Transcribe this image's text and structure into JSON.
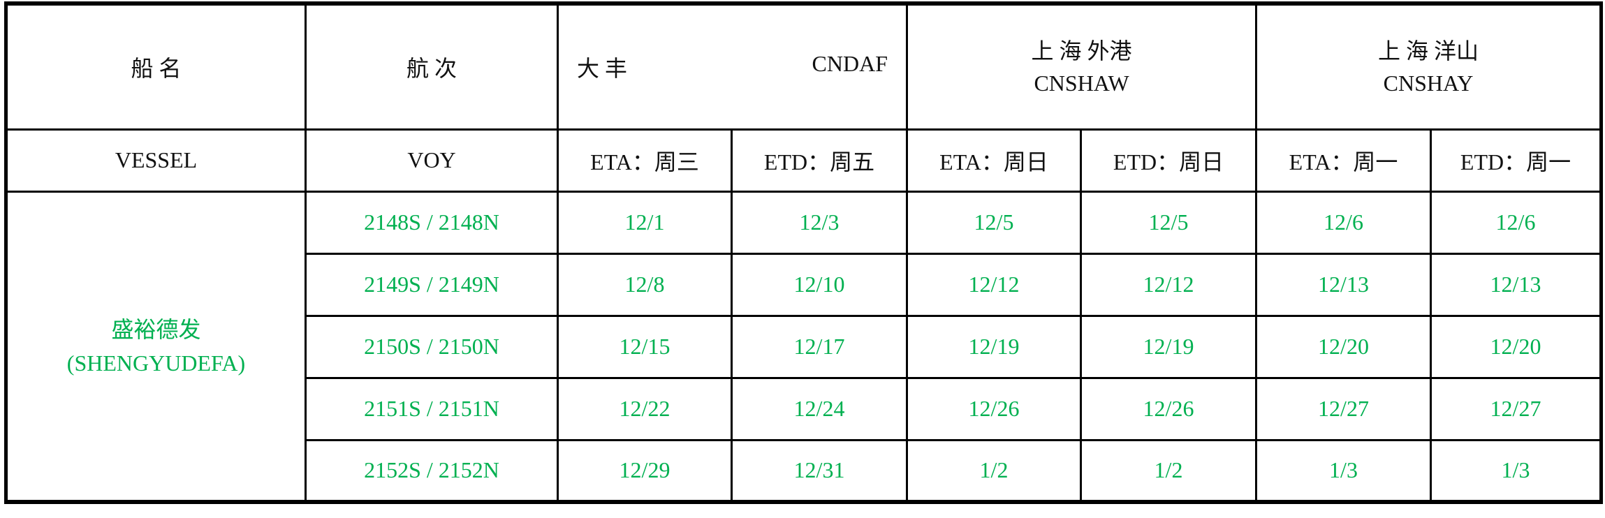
{
  "header": {
    "vessel_cn": "船 名",
    "voy_cn": "航 次",
    "port1_cn": "大 丰",
    "port1_code": "CNDAF",
    "port2_cn": "上 海 外港",
    "port2_code": "CNSHAW",
    "port3_cn": "上 海 洋山",
    "port3_code": "CNSHAY",
    "vessel_en": "VESSEL",
    "voy_en": "VOY",
    "sub": [
      "ETA：周三",
      "ETD：周五",
      "ETA：周日",
      "ETD：周日",
      "ETA：周一",
      "ETD：周一"
    ]
  },
  "vessel": {
    "name_cn": "盛裕德发",
    "name_en": "(SHENGYUDEFA)"
  },
  "accent_color": "#00b050",
  "rows": [
    {
      "voy": "2148S / 2148N",
      "dates": [
        "12/1",
        "12/3",
        "12/5",
        "12/5",
        "12/6",
        "12/6"
      ]
    },
    {
      "voy": "2149S / 2149N",
      "dates": [
        "12/8",
        "12/10",
        "12/12",
        "12/12",
        "12/13",
        "12/13"
      ]
    },
    {
      "voy": "2150S / 2150N",
      "dates": [
        "12/15",
        "12/17",
        "12/19",
        "12/19",
        "12/20",
        "12/20"
      ]
    },
    {
      "voy": "2151S / 2151N",
      "dates": [
        "12/22",
        "12/24",
        "12/26",
        "12/26",
        "12/27",
        "12/27"
      ]
    },
    {
      "voy": "2152S / 2152N",
      "dates": [
        "12/29",
        "12/31",
        "1/2",
        "1/2",
        "1/3",
        "1/3"
      ]
    }
  ]
}
